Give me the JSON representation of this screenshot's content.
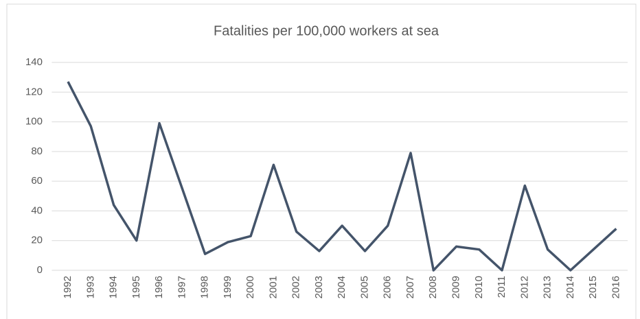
{
  "chart_data": {
    "type": "line",
    "title": "Fatalities per 100,000 workers at sea",
    "categories": [
      "1992",
      "1993",
      "1994",
      "1995",
      "1996",
      "1997",
      "1998",
      "1999",
      "2000",
      "2001",
      "2002",
      "2003",
      "2004",
      "2005",
      "2006",
      "2007",
      "2008",
      "2009",
      "2010",
      "2011",
      "2012",
      "2013",
      "2014",
      "2015",
      "2016"
    ],
    "series": [
      {
        "name": "Fatalities",
        "color": "#44546a",
        "values": [
          127,
          97,
          44,
          20,
          99,
          55,
          11,
          19,
          23,
          71,
          26,
          13,
          30,
          13,
          30,
          79,
          0,
          16,
          14,
          0,
          57,
          14,
          0,
          14,
          28
        ]
      }
    ],
    "ylim": [
      0,
      140
    ],
    "yticks": [
      0,
      20,
      40,
      60,
      80,
      100,
      120,
      140
    ],
    "grid": true
  }
}
